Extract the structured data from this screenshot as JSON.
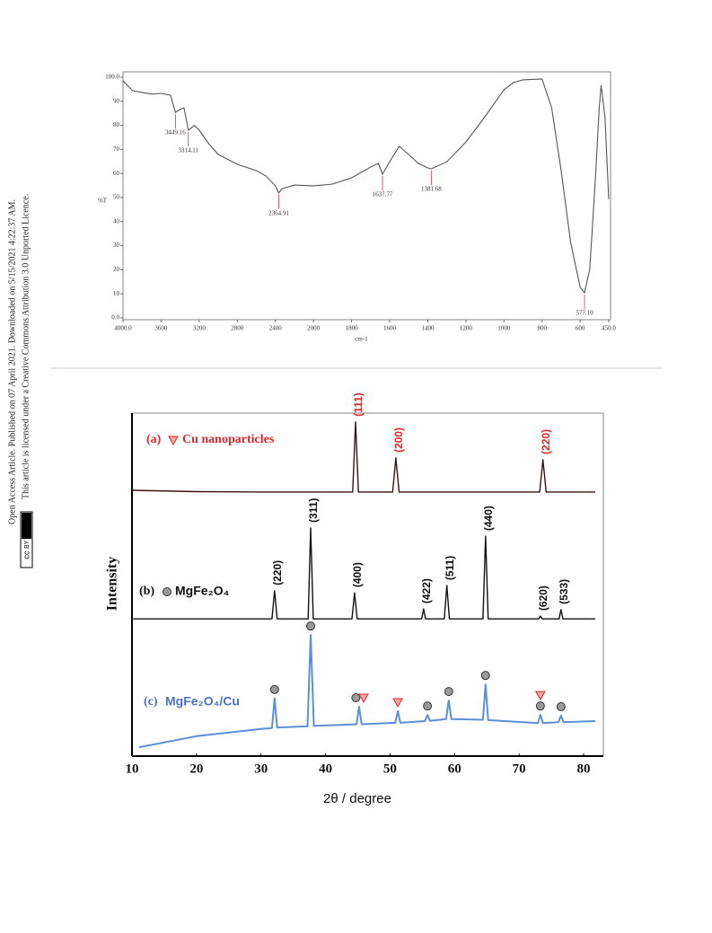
{
  "sidebar": {
    "line1": "Open Access Article. Published on 07 April 2021. Downloaded on 5/15/2021 4:22:37 AM.",
    "badge_cc": "cc",
    "badge_by": "BY",
    "line2": "This article is licensed under a Creative Commons Attribution 3.0 Unported Licence."
  },
  "chart_data": [
    {
      "type": "line",
      "xlabel": "cm-1",
      "ylabel": "%T",
      "color": "#555555",
      "peak_color": "#e0303a",
      "xlim": [
        4000,
        450
      ],
      "ylim": [
        0,
        100
      ],
      "xticks": [
        {
          "value": 4000,
          "label": "4000.0"
        },
        3600,
        3200,
        2800,
        2400,
        2000,
        1800,
        1600,
        1400,
        1200,
        1000,
        800,
        600,
        {
          "value": 450,
          "label": "450.0"
        }
      ],
      "yticks": [
        {
          "value": 0,
          "label": "0.0"
        },
        10,
        20,
        30,
        40,
        50,
        60,
        70,
        80,
        90,
        {
          "value": 100,
          "label": "100.0"
        }
      ],
      "x": [
        4000,
        3900,
        3800,
        3700,
        3600,
        3500,
        3449.16,
        3400,
        3360,
        3314.11,
        3250,
        3200,
        3100,
        3000,
        2800,
        2600,
        2500,
        2400,
        2364.91,
        2330,
        2200,
        2000,
        1900,
        1800,
        1700,
        1660,
        1637.77,
        1600,
        1550,
        1500,
        1450,
        1400,
        1381.68,
        1300,
        1200,
        1100,
        1000,
        950,
        900,
        800,
        750,
        700,
        650,
        600,
        577.1,
        550,
        520,
        500,
        490,
        470,
        450
      ],
      "values": [
        98.5,
        94.4,
        93.7,
        93,
        93.3,
        92.5,
        85.4,
        86.6,
        87.3,
        78,
        80,
        78,
        72.4,
        67.9,
        63.8,
        61.2,
        59,
        54.9,
        51.9,
        53.7,
        55.2,
        54.9,
        55.6,
        58.2,
        62.7,
        64.2,
        59.7,
        64.9,
        71.3,
        67.9,
        64.2,
        62.3,
        61.9,
        64.9,
        73.1,
        83.6,
        94.8,
        97.8,
        98.9,
        99.3,
        87.3,
        61.2,
        31.3,
        12.7,
        10.4,
        20.1,
        57.5,
        87.3,
        96.6,
        83.6,
        49.3
      ],
      "peaks": [
        {
          "x": 3449.16,
          "label": "3449.16"
        },
        {
          "x": 3314.11,
          "label": "3314.11"
        },
        {
          "x": 2364.91,
          "label": "2364.91"
        },
        {
          "x": 1637.77,
          "label": "1637.77"
        },
        {
          "x": 1381.68,
          "label": "1381.68"
        },
        {
          "x": 577.1,
          "label": "577.10"
        }
      ]
    },
    {
      "type": "line",
      "xlabel": "2θ / degree",
      "ylabel": "Intensity",
      "xlim": [
        10,
        80
      ],
      "ylim": [
        0,
        100
      ],
      "xticks": [
        10,
        20,
        30,
        40,
        50,
        60,
        70,
        80
      ],
      "series": [
        {
          "label": "(a)",
          "name": "Cu nanoparticles",
          "symbol": "triangle",
          "color": "#3a1212",
          "text_color": "#e02828",
          "x": [
            10,
            20,
            30,
            40,
            44.2,
            44.65,
            45.1,
            50.4,
            50.9,
            51.4,
            60,
            70,
            73.2,
            73.7,
            74.2,
            81.8
          ],
          "values": [
            77.5,
            77.1,
            77,
            77,
            77,
            97.4,
            77,
            77,
            86.9,
            77,
            77,
            77,
            77,
            86.4,
            77,
            77
          ],
          "annotations": [
            {
              "x": 44.65,
              "label": "(111)"
            },
            {
              "x": 50.9,
              "label": "(200)"
            },
            {
              "x": 73.7,
              "label": "(220)"
            }
          ]
        },
        {
          "label": "(b)",
          "name": "MgFe₂O₄",
          "symbol": "circle",
          "color": "#111111",
          "text_color": "#111111",
          "x": [
            10.2,
            20,
            31.7,
            32.1,
            32.5,
            37.3,
            37.7,
            38.1,
            44.1,
            44.5,
            44.9,
            54.9,
            55.2,
            55.5,
            58.4,
            58.8,
            59.2,
            64.4,
            64.8,
            65.2,
            73.0,
            73.3,
            73.6,
            76.2,
            76.5,
            76.8,
            81.8
          ],
          "values": [
            40,
            40,
            40,
            48.2,
            40,
            40,
            66.5,
            40,
            40,
            47.6,
            40,
            40,
            42.9,
            40,
            40,
            49.7,
            40,
            40,
            64.1,
            40,
            40,
            40.8,
            40,
            40,
            42.7,
            40,
            40
          ],
          "annotations": [
            {
              "x": 32.1,
              "label": "(220)"
            },
            {
              "x": 37.7,
              "label": "(311)"
            },
            {
              "x": 44.5,
              "label": "(400)"
            },
            {
              "x": 55.2,
              "label": "(422)"
            },
            {
              "x": 58.8,
              "label": "(511)"
            },
            {
              "x": 64.8,
              "label": "(440)"
            },
            {
              "x": 73.3,
              "label": "(620)"
            },
            {
              "x": 76.5,
              "label": "(533)"
            }
          ]
        },
        {
          "label": "(c)",
          "name": "MgFe₂O₄/Cu",
          "color": "#5b8fd6",
          "text_color": "#4a72c8",
          "x": [
            11.1,
            20,
            30,
            31.7,
            32.1,
            32.5,
            37.2,
            37.7,
            38.2,
            44.8,
            45.2,
            45.6,
            50.8,
            51.2,
            51.6,
            55.4,
            55.8,
            56.2,
            58.7,
            59.1,
            59.5,
            64.4,
            64.8,
            65.2,
            72.9,
            73.3,
            73.7,
            76.1,
            76.5,
            76.9,
            81.8
          ],
          "values": [
            2.6,
            5.8,
            7.9,
            8.2,
            16.8,
            8.3,
            8.7,
            35.3,
            8.8,
            9.3,
            14.4,
            9.3,
            9.7,
            13.1,
            9.7,
            10.2,
            12,
            10.3,
            10.8,
            16.2,
            10.8,
            10.6,
            20.9,
            10.5,
            9.6,
            12,
            9.6,
            9.9,
            11.8,
            9.9,
            10.2
          ],
          "markers": [
            {
              "x": 32.1,
              "symbol": "circle"
            },
            {
              "x": 37.7,
              "symbol": "circle"
            },
            {
              "x": 44.7,
              "symbol": "circle"
            },
            {
              "x": 45.9,
              "symbol": "triangle"
            },
            {
              "x": 51.2,
              "symbol": "triangle"
            },
            {
              "x": 55.8,
              "symbol": "circle"
            },
            {
              "x": 59.1,
              "symbol": "circle"
            },
            {
              "x": 64.8,
              "symbol": "circle"
            },
            {
              "x": 73.3,
              "symbol": "circle"
            },
            {
              "x": 73.3,
              "symbol": "triangle"
            },
            {
              "x": 76.5,
              "symbol": "circle"
            }
          ]
        }
      ]
    }
  ]
}
